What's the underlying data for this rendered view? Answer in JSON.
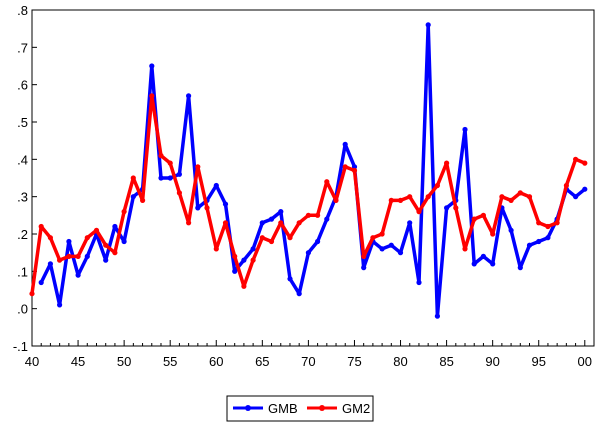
{
  "chart_data": {
    "type": "line",
    "title": "",
    "xlabel": "",
    "ylabel": "",
    "xlim": [
      1940,
      2001
    ],
    "ylim": [
      -0.1,
      0.8
    ],
    "x_ticks": [
      {
        "value": 1940,
        "label": "40"
      },
      {
        "value": 1945,
        "label": "45"
      },
      {
        "value": 1950,
        "label": "50"
      },
      {
        "value": 1955,
        "label": "55"
      },
      {
        "value": 1960,
        "label": "60"
      },
      {
        "value": 1965,
        "label": "65"
      },
      {
        "value": 1970,
        "label": "70"
      },
      {
        "value": 1975,
        "label": "75"
      },
      {
        "value": 1980,
        "label": "80"
      },
      {
        "value": 1985,
        "label": "85"
      },
      {
        "value": 1990,
        "label": "90"
      },
      {
        "value": 1995,
        "label": "95"
      },
      {
        "value": 2000,
        "label": "00"
      }
    ],
    "y_ticks": [
      {
        "value": -0.1,
        "label": "-.1"
      },
      {
        "value": 0.0,
        "label": ".0"
      },
      {
        "value": 0.1,
        "label": ".1"
      },
      {
        "value": 0.2,
        "label": ".2"
      },
      {
        "value": 0.3,
        "label": ".3"
      },
      {
        "value": 0.4,
        "label": ".4"
      },
      {
        "value": 0.5,
        "label": ".5"
      },
      {
        "value": 0.6,
        "label": ".6"
      },
      {
        "value": 0.7,
        "label": ".7"
      },
      {
        "value": 0.8,
        "label": ".8"
      }
    ],
    "x": [
      1941,
      1942,
      1943,
      1944,
      1945,
      1946,
      1947,
      1948,
      1949,
      1950,
      1951,
      1952,
      1953,
      1954,
      1955,
      1956,
      1957,
      1958,
      1959,
      1960,
      1961,
      1962,
      1963,
      1964,
      1965,
      1966,
      1967,
      1968,
      1969,
      1970,
      1971,
      1972,
      1973,
      1974,
      1975,
      1976,
      1977,
      1978,
      1979,
      1980,
      1981,
      1982,
      1983,
      1984,
      1985,
      1986,
      1987,
      1988,
      1989,
      1990,
      1991,
      1992,
      1993,
      1994,
      1995,
      1996,
      1997,
      1998,
      1999,
      2000
    ],
    "series": [
      {
        "name": "GMB",
        "color": "#0000ff",
        "values": [
          0.07,
          0.12,
          0.01,
          0.18,
          0.09,
          0.14,
          0.2,
          0.13,
          0.22,
          0.18,
          0.3,
          0.32,
          0.65,
          0.35,
          0.35,
          0.36,
          0.57,
          0.27,
          0.29,
          0.33,
          0.28,
          0.1,
          0.13,
          0.16,
          0.23,
          0.24,
          0.26,
          0.08,
          0.04,
          0.15,
          0.18,
          0.24,
          0.3,
          0.44,
          0.38,
          0.11,
          0.18,
          0.16,
          0.17,
          0.15,
          0.23,
          0.07,
          0.76,
          -0.02,
          0.27,
          0.29,
          0.48,
          0.12,
          0.14,
          0.12,
          0.27,
          0.21,
          0.11,
          0.17,
          0.18,
          0.19,
          0.24,
          0.32,
          0.3,
          0.32
        ]
      },
      {
        "name": "GM2",
        "color": "#ff0000",
        "values": [
          0.22,
          0.19,
          0.13,
          0.14,
          0.14,
          0.19,
          0.21,
          0.17,
          0.15,
          0.26,
          0.35,
          0.29,
          0.57,
          0.41,
          0.39,
          0.31,
          0.23,
          0.38,
          0.27,
          0.16,
          0.23,
          0.14,
          0.06,
          0.13,
          0.19,
          0.18,
          0.23,
          0.19,
          0.23,
          0.25,
          0.25,
          0.34,
          0.29,
          0.38,
          0.37,
          0.14,
          0.19,
          0.2,
          0.29,
          0.29,
          0.3,
          0.26,
          0.3,
          0.33,
          0.39,
          0.27,
          0.16,
          0.24,
          0.25,
          0.2,
          0.3,
          0.29,
          0.31,
          0.3,
          0.23,
          0.22,
          0.23,
          0.33,
          0.4,
          0.39
        ]
      }
    ],
    "extra_first_point": {
      "x": 1940,
      "GM2": 0.04
    },
    "legend": {
      "position": "bottom-center",
      "entries": [
        "GMB",
        "GM2"
      ]
    },
    "grid": false
  }
}
